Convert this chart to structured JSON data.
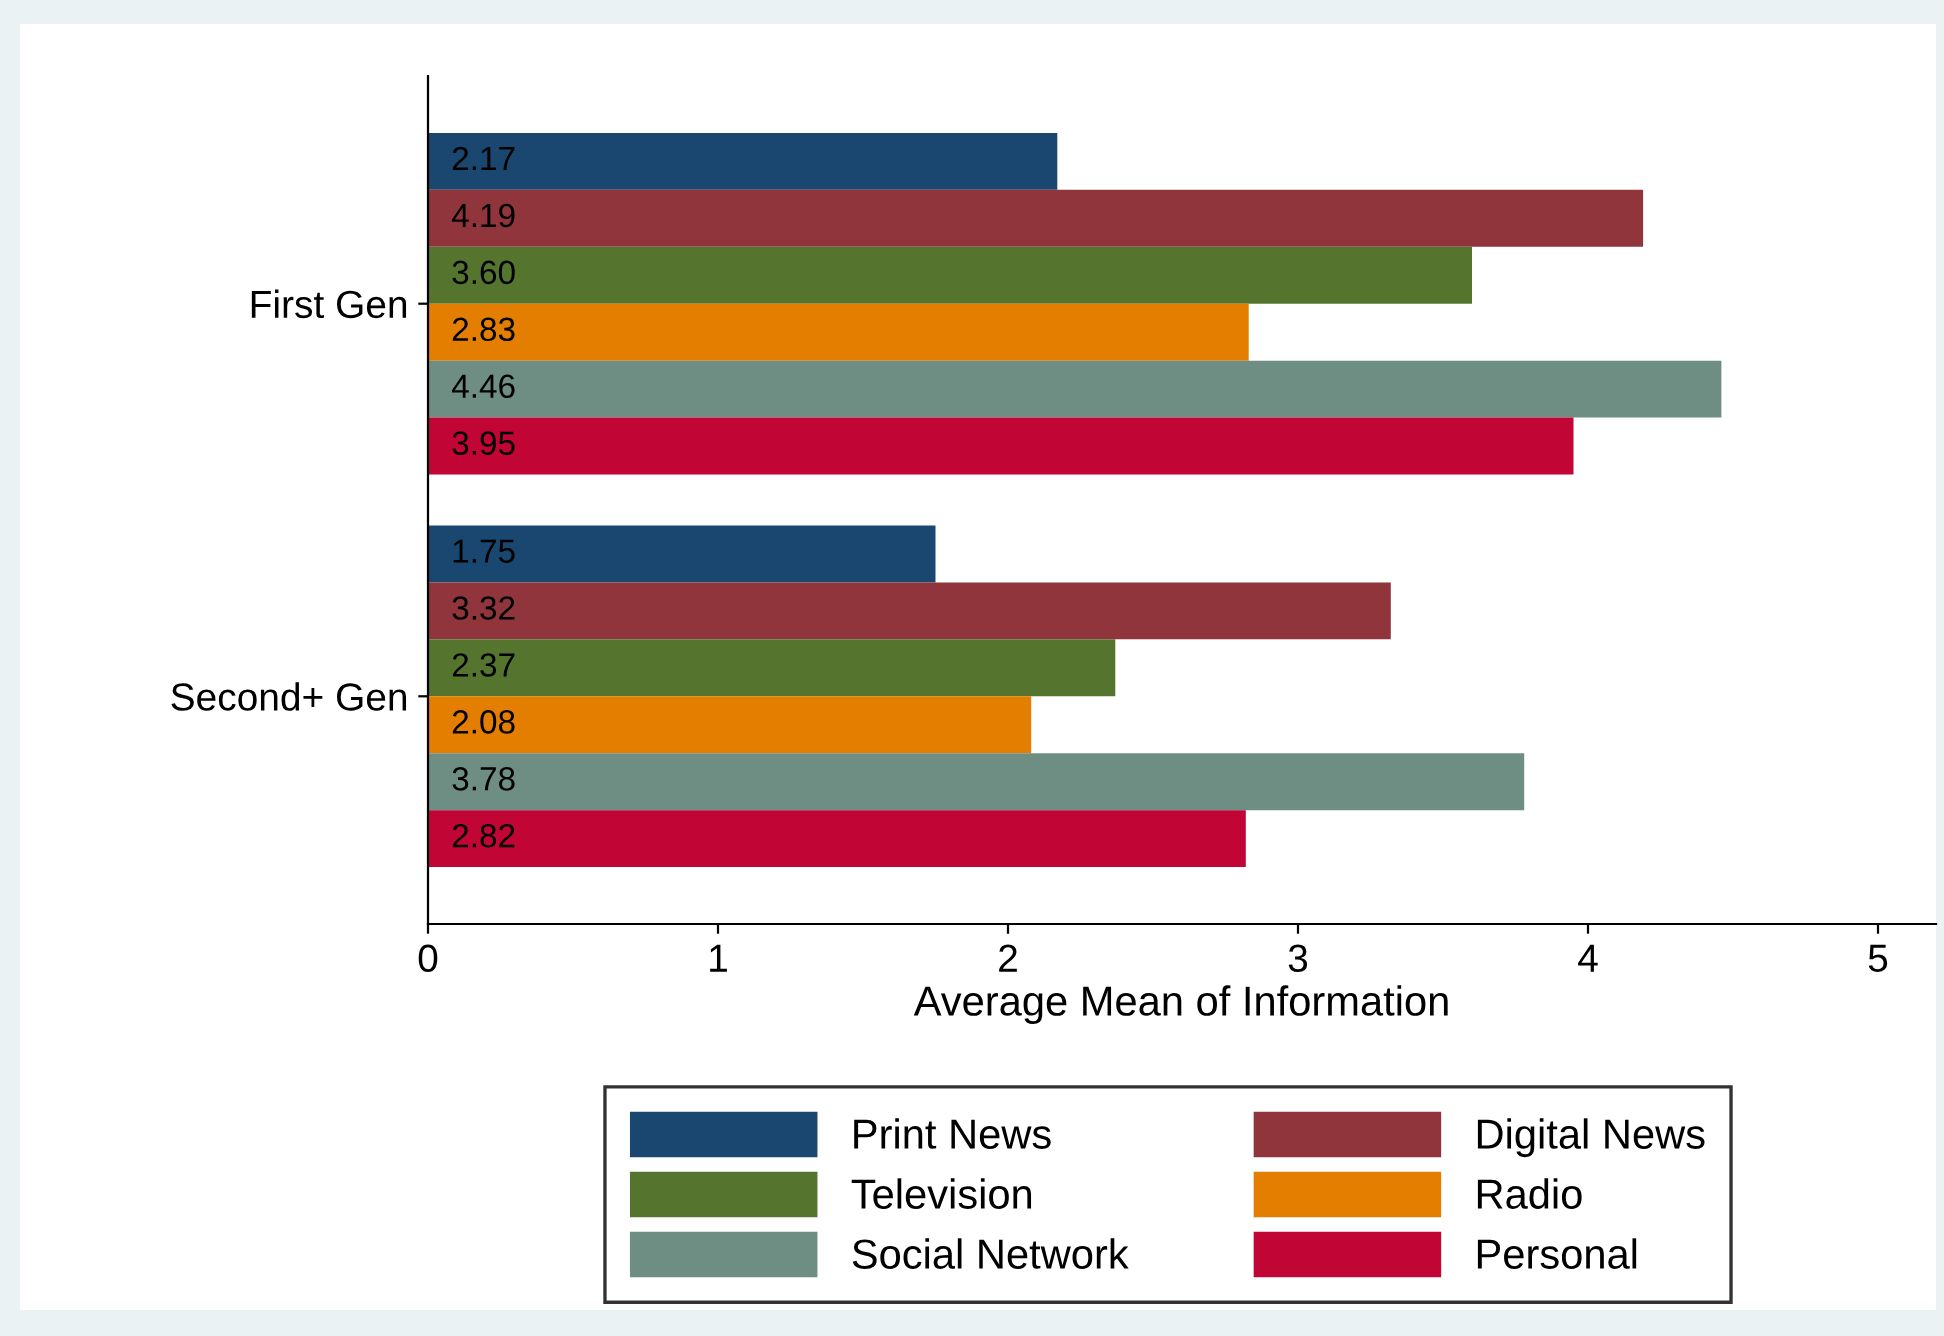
{
  "chart_data": {
    "type": "bar",
    "orientation": "horizontal",
    "xlabel": "Average Mean of Information",
    "categories": [
      "First Gen",
      "Second+ Gen"
    ],
    "series": [
      {
        "name": "Print News",
        "color": "#1a476f",
        "values": [
          2.17,
          1.75
        ],
        "value_labels": [
          "2.17",
          "1.75"
        ]
      },
      {
        "name": "Digital News",
        "color": "#90353b",
        "values": [
          4.19,
          3.32
        ],
        "value_labels": [
          "4.19",
          "3.32"
        ]
      },
      {
        "name": "Television",
        "color": "#55752f",
        "values": [
          3.6,
          2.37
        ],
        "value_labels": [
          "3.60",
          "2.37"
        ]
      },
      {
        "name": "Radio",
        "color": "#e37e00",
        "values": [
          2.83,
          2.08
        ],
        "value_labels": [
          "2.83",
          "2.08"
        ]
      },
      {
        "name": "Social Network",
        "color": "#6e8e84",
        "values": [
          4.46,
          3.78
        ],
        "value_labels": [
          "4.46",
          "3.78"
        ]
      },
      {
        "name": "Personal",
        "color": "#c10534",
        "values": [
          3.95,
          2.82
        ],
        "value_labels": [
          "3.95",
          "2.82"
        ]
      }
    ],
    "xlim": [
      0,
      5.2
    ],
    "xticks": [
      0,
      1,
      2,
      3,
      4,
      5
    ],
    "grid": false,
    "legend": "bottom"
  }
}
